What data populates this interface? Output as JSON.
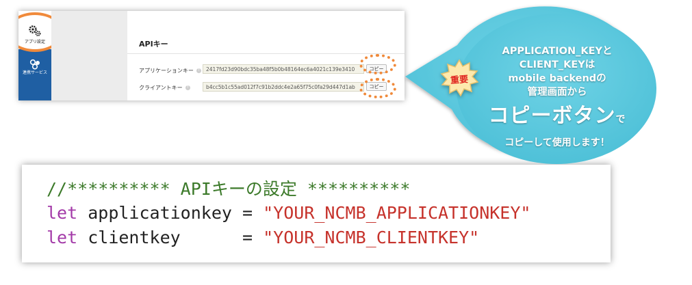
{
  "sidebar": {
    "items": [
      {
        "label": "アプリ設定",
        "icon": "gear-icon"
      },
      {
        "label": "連携サービス",
        "icon": "services-icon"
      }
    ]
  },
  "api_panel": {
    "title": "APIキー",
    "fields": [
      {
        "label": "アプリケーションキー",
        "value": "2417fd23d90bdc35ba48f5b0b48164ec6a4021c139e3410",
        "copy_label": "コピー"
      },
      {
        "label": "クライアントキー",
        "value": "b4cc5b1c55ad012f7c91b2ddc4e2a65f75c0fa29d447d1ab",
        "copy_label": "コピー"
      }
    ]
  },
  "callout": {
    "badge": "重要",
    "line1": "APPLICATION_KEYと",
    "line2": "CLIENT_KEYは",
    "line3": "mobile backendの",
    "line4": "管理画面から",
    "big_text": "コピーボタン",
    "big_suffix": "で",
    "last_line": "コピーして使用します！"
  },
  "code": {
    "comment": "//********** APIキーの設定 **********",
    "line1": {
      "keyword": "let",
      "name": "applicationkey",
      "op": "=",
      "value": "\"YOUR_NCMB_APPLICATIONKEY\""
    },
    "line2": {
      "keyword": "let",
      "name": "clientkey",
      "op": "=",
      "value": "\"YOUR_NCMB_CLIENTKEY\""
    }
  },
  "colors": {
    "sidebar": "#1f5fa3",
    "highlight": "#f08a3b",
    "bubble": "#5bc8dd",
    "badge": "#e0251f",
    "code_comment": "#3c7a2a",
    "code_keyword": "#a33aa8",
    "code_string": "#c6322b"
  }
}
